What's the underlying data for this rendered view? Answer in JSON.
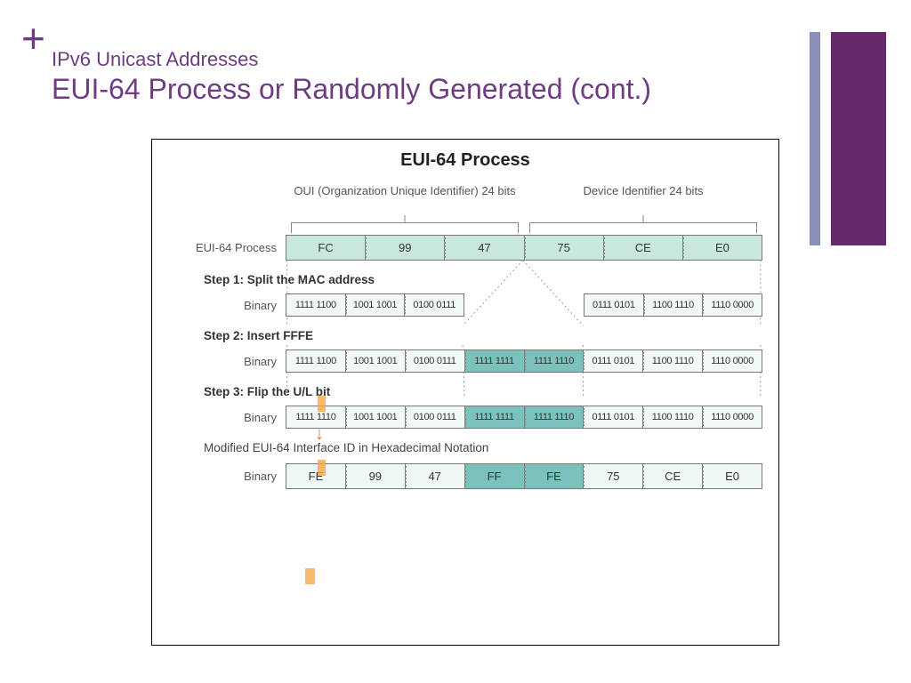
{
  "header": {
    "plus": "+",
    "subtitle": "IPv6 Unicast Addresses",
    "title": "EUI-64 Process or Randomly Generated (cont.)"
  },
  "palette": {
    "accent_purple": "#6e3c80",
    "deep_purple": "#662a6c",
    "slate_blue": "#8a90b8",
    "cell_light": "#dff0ec",
    "cell_lighter": "#f1f8f6",
    "cell_teal": "#7bc2bd",
    "highlight_orange": "#f4a340",
    "arrow_orange": "#e87a1a",
    "border_gray": "#777777",
    "text_gray": "#555555"
  },
  "diagram": {
    "title": "EUI-64 Process",
    "brackets": {
      "left": "OUI (Organization Unique Identifier) 24 bits",
      "right": "Device Identifier 24 bits"
    },
    "mac_row": {
      "label": "EUI-64 Process",
      "cells": [
        "FC",
        "99",
        "47",
        "75",
        "CE",
        "E0"
      ],
      "cell_color": "#c9e7e1"
    },
    "step1": {
      "label": "Step 1: Split the MAC address",
      "row_label": "Binary",
      "left": [
        "1111 1100",
        "1001 1001",
        "0100 0111"
      ],
      "right": [
        "0111 0101",
        "1100 1110",
        "1110 0000"
      ],
      "cell_color": "#f1f8f6"
    },
    "step2": {
      "label": "Step 2: Insert FFFE",
      "row_label": "Binary",
      "cells": [
        "1111 1100",
        "1001 1001",
        "0100 0111",
        "1111 1111",
        "1111 1110",
        "0111 0101",
        "1100 1110",
        "1110 0000"
      ],
      "insert_indices": [
        3,
        4
      ],
      "cell_color": "#f1f8f6",
      "insert_color": "#7bc2bd"
    },
    "step3": {
      "label": "Step 3: Flip the U/L bit",
      "row_label": "Binary",
      "cells": [
        "1111 1110",
        "1001 1001",
        "0100 0111",
        "1111 1111",
        "1111 1110",
        "0111 0101",
        "1100 1110",
        "1110 0000"
      ],
      "insert_indices": [
        3,
        4
      ],
      "cell_color": "#f1f8f6",
      "insert_color": "#7bc2bd"
    },
    "final": {
      "label": "Modified EUI-64 Interface ID in Hexadecimal Notation",
      "row_label": "Binary",
      "cells": [
        "FE",
        "99",
        "47",
        "FF",
        "FE",
        "75",
        "CE",
        "E0"
      ],
      "insert_indices": [
        3,
        4
      ],
      "cell_color": "#eef7f4",
      "insert_color": "#7bc2bd"
    }
  }
}
